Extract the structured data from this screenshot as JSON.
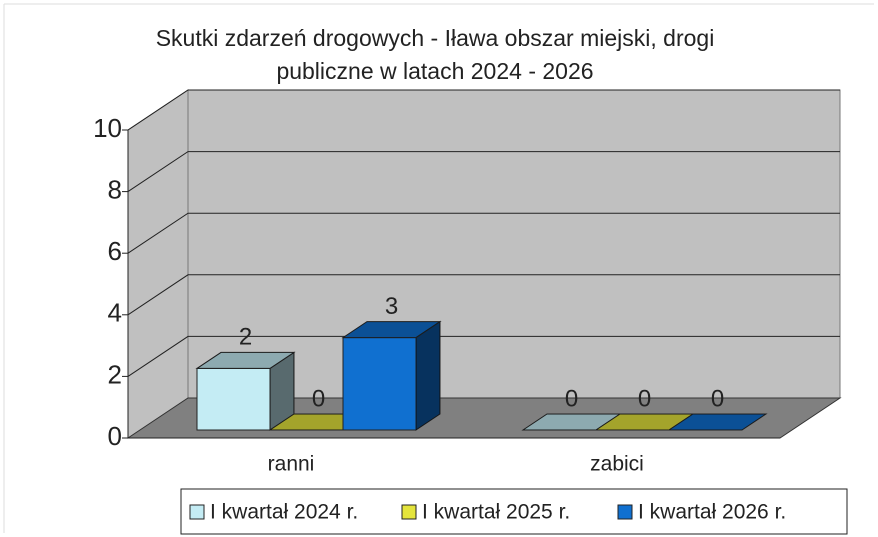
{
  "chart_data": {
    "type": "bar3d",
    "title": [
      "Skutki zdarzeń drogowych  - Iława obszar miejski, drogi",
      "publiczne  w latach 2024 - 2026"
    ],
    "categories": [
      "ranni",
      "zabici"
    ],
    "series": [
      {
        "name": "I kwartał 2024 r.",
        "color": "#c4ecf4",
        "values": [
          2,
          0
        ]
      },
      {
        "name": "I kwartał 2025 r.",
        "color": "#e4e43c",
        "values": [
          0,
          0
        ]
      },
      {
        "name": "I kwartał 2026 r.",
        "color": "#1070d0",
        "values": [
          3,
          0
        ]
      }
    ],
    "ylim": [
      0,
      10
    ],
    "yticks": [
      0,
      2,
      4,
      6,
      8,
      10
    ],
    "grid": true,
    "legend": "bottom"
  }
}
